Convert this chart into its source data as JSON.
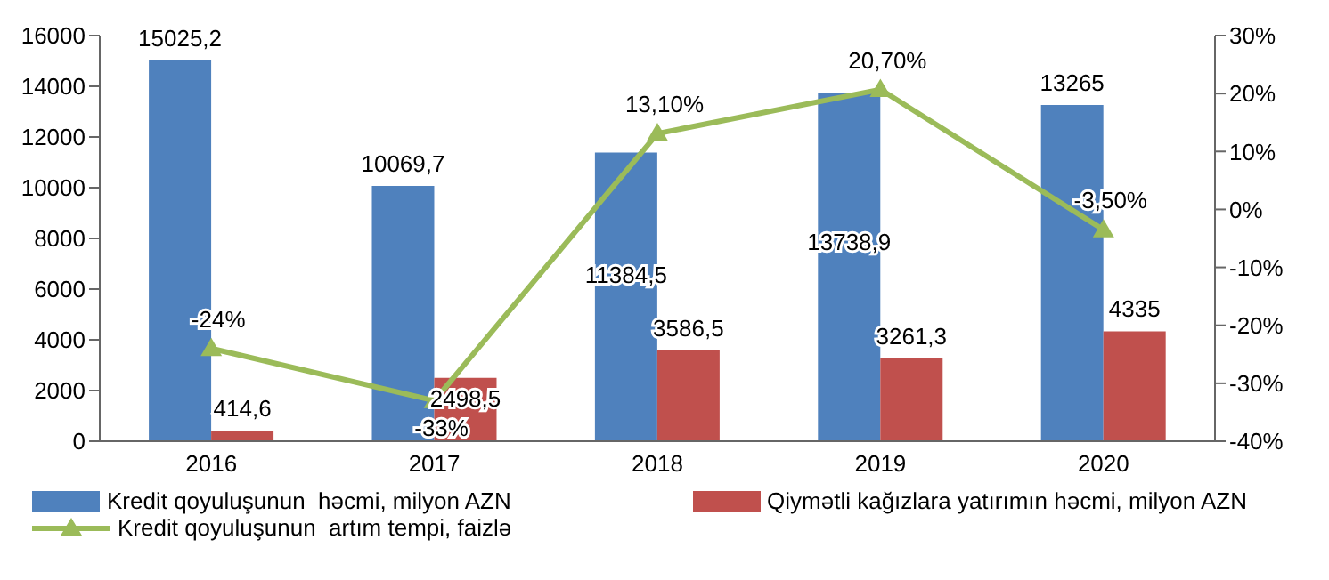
{
  "chart_data": {
    "type": "bar",
    "categories": [
      "2016",
      "2017",
      "2018",
      "2019",
      "2020"
    ],
    "series": [
      {
        "name": "Kredit qoyuluşunun  həcmi, milyon AZN",
        "color": "#4f81bd",
        "values": [
          15025.2,
          10069.7,
          11384.5,
          13738.9,
          13265
        ],
        "value_labels": [
          "15025,2",
          "10069,7",
          "11384,5",
          "13738,9",
          "13265"
        ]
      },
      {
        "name": "Qiymətli kağızlara yatırımın həcmi, milyon AZN",
        "color": "#c0504d",
        "values": [
          414.6,
          2498.5,
          3586.5,
          3261.3,
          4335
        ],
        "value_labels": [
          "414,6",
          "2498,5",
          "3586,5",
          "3261,3",
          "4335"
        ]
      },
      {
        "name": "Kredit qoyuluşunun  artım tempi, faizlə",
        "type": "line",
        "axis": "y2",
        "color": "#9bbb59",
        "marker": "triangle",
        "values": [
          -24,
          -33,
          13.1,
          20.7,
          -3.5
        ],
        "value_labels": [
          "-24%",
          "-33%",
          "13,10%",
          "20,70%",
          "-3,50%"
        ]
      }
    ],
    "ylim": [
      0,
      16000
    ],
    "yticks": [
      0,
      2000,
      4000,
      6000,
      8000,
      10000,
      12000,
      14000,
      16000
    ],
    "y2lim": [
      -40,
      30
    ],
    "y2ticks": [
      {
        "value": -40,
        "label": "-40%"
      },
      {
        "value": -30,
        "label": "-30%"
      },
      {
        "value": -20,
        "label": "-20%"
      },
      {
        "value": -10,
        "label": "-10%"
      },
      {
        "value": 0,
        "label": "0%"
      },
      {
        "value": 10,
        "label": "10%"
      },
      {
        "value": 20,
        "label": "20%"
      },
      {
        "value": 30,
        "label": "30%"
      }
    ],
    "grid": false,
    "legend": "bottom"
  }
}
